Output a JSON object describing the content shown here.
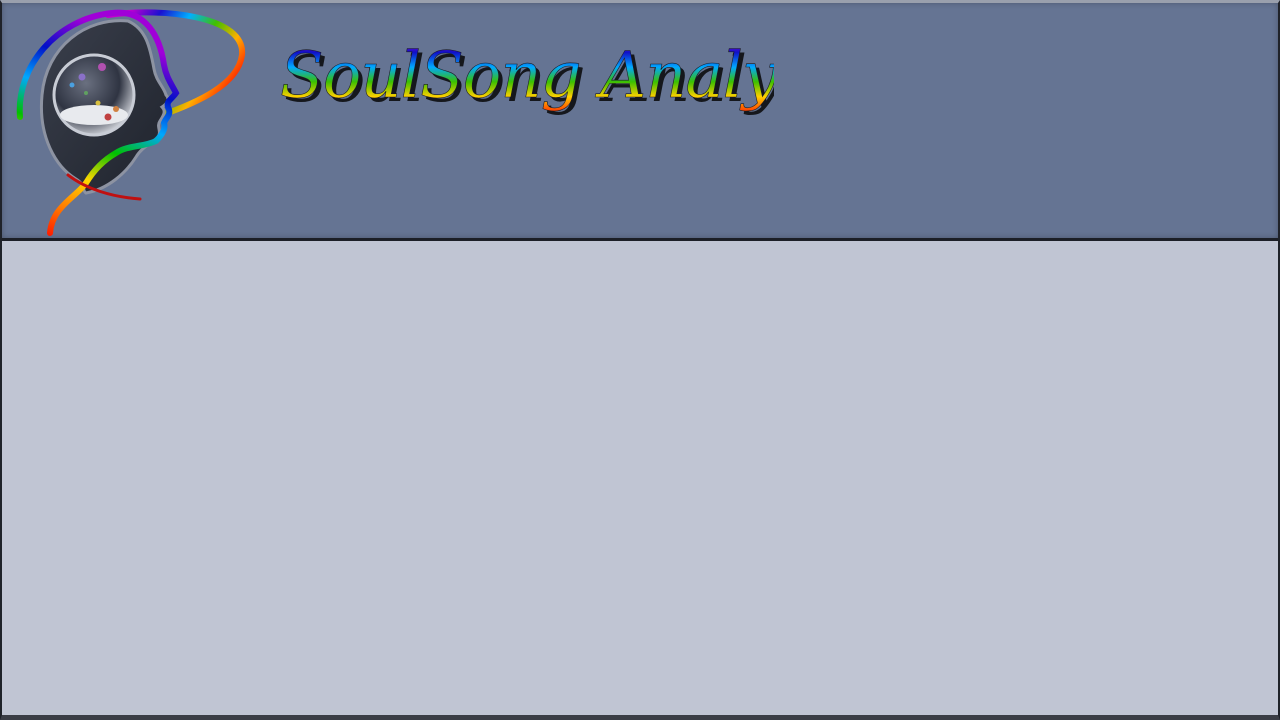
{
  "app": {
    "title": "SoulSong Analysis"
  },
  "logo": {
    "icon": "head-profile-with-orb-icon",
    "colors": [
      "#ff0000",
      "#ff8c00",
      "#ffd700",
      "#00c000",
      "#00a0ff",
      "#0000c0",
      "#8a00d4"
    ]
  },
  "colors": {
    "header_bg": "#657493",
    "content_bg": "#c0c5d3",
    "divider": "#1c1f27"
  }
}
